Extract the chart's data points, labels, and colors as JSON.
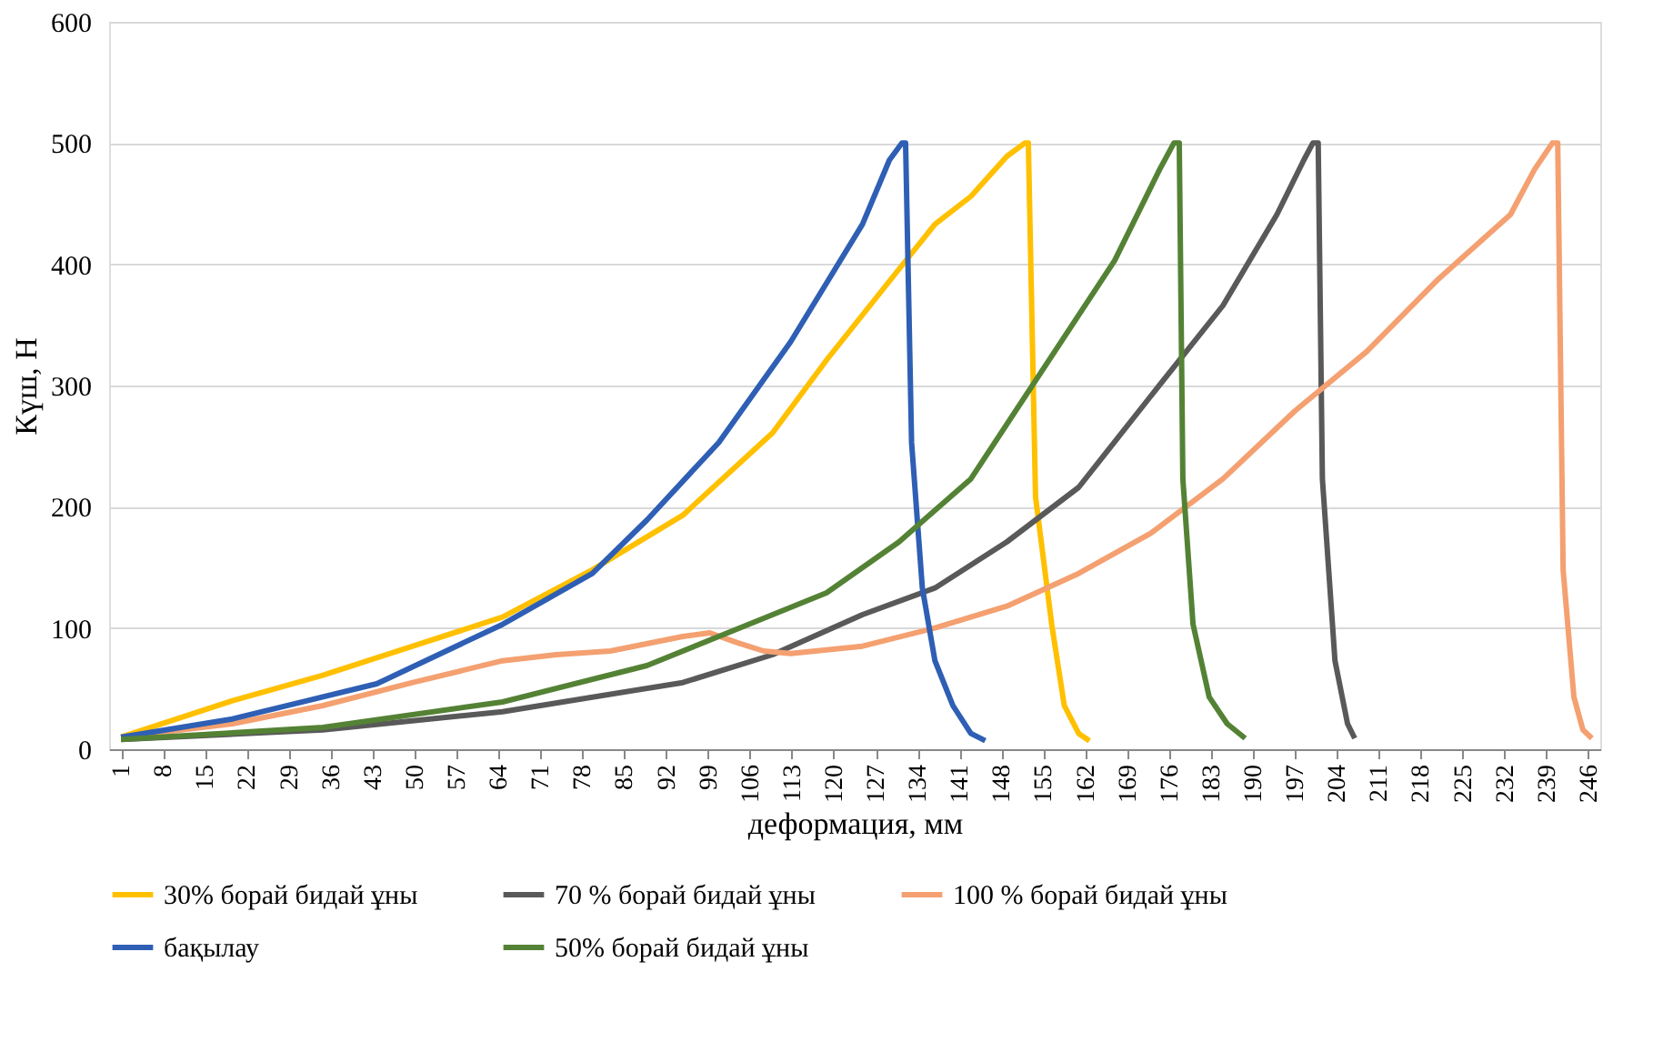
{
  "chart_data": {
    "type": "line",
    "xlabel": "деформация, мм",
    "ylabel": "Күш, Н",
    "xlim": [
      -1,
      248
    ],
    "ylim": [
      0,
      600
    ],
    "xticks": [
      1,
      8,
      15,
      22,
      29,
      36,
      43,
      50,
      57,
      64,
      71,
      78,
      85,
      92,
      99,
      106,
      113,
      120,
      127,
      134,
      141,
      148,
      155,
      162,
      169,
      176,
      183,
      190,
      197,
      204,
      211,
      218,
      225,
      232,
      239,
      246
    ],
    "yticks": [
      0,
      100,
      200,
      300,
      400,
      500,
      600
    ],
    "grid": "y",
    "legend": "bottom",
    "marker": "none",
    "line_style": "solid",
    "series": [
      {
        "name": "30% борай бидай ұны",
        "color": "#ffc000",
        "x": [
          1,
          19.6,
          34.7,
          49.7,
          64.7,
          79.7,
          94.8,
          109.8,
          118.8,
          130.9,
          136.9,
          142.9,
          148.9,
          151.9,
          152.5,
          153.7,
          156.4,
          158.5,
          160.9,
          162.7
        ],
        "values": [
          10,
          40,
          61,
          85,
          109,
          148,
          193,
          261,
          321,
          396,
          433,
          456,
          489,
          500,
          500,
          208,
          103,
          36,
          13,
          7
        ]
      },
      {
        "name": "70 % борай бидай ұны",
        "color": "#595959",
        "x": [
          1,
          34.7,
          64.7,
          94.8,
          109.8,
          124.8,
          136.9,
          148.9,
          160.9,
          172.9,
          185,
          194,
          198.5,
          200,
          200.9,
          201.6,
          203.7,
          205.8,
          207
        ],
        "values": [
          8,
          16,
          31,
          55,
          78,
          111,
          133,
          171,
          216,
          291,
          366,
          441,
          486,
          500,
          500,
          223,
          73,
          21,
          9
        ]
      },
      {
        "name": "100 % борай бидай ұны",
        "color": "#f4a070",
        "x": [
          1,
          19.6,
          34.7,
          49.7,
          64.7,
          73.7,
          82.7,
          94.8,
          99.3,
          103.8,
          108.3,
          112.8,
          124.8,
          136.9,
          148.9,
          160.9,
          172.9,
          185,
          197,
          209,
          221,
          233,
          237,
          240,
          240.9,
          241.8,
          243.6,
          245.1,
          246.6
        ],
        "values": [
          10,
          21,
          36,
          55,
          73,
          78,
          81,
          93,
          96,
          88,
          81,
          79,
          85,
          100,
          118,
          145,
          178,
          223,
          279,
          328,
          388,
          441,
          478,
          500,
          500,
          148,
          43,
          16,
          9
        ]
      },
      {
        "name": "бақылау",
        "color": "#2e5fb4",
        "x": [
          1,
          19.6,
          43.7,
          64.7,
          79.7,
          88.8,
          100.8,
          112.8,
          124.8,
          129.3,
          131.4,
          132,
          133,
          134.8,
          136.9,
          139.9,
          142.9,
          145.3
        ],
        "values": [
          10,
          25,
          54,
          103,
          145,
          189,
          253,
          336,
          433,
          486,
          500,
          500,
          253,
          133,
          73,
          36,
          13,
          7
        ]
      },
      {
        "name": "50% борай бидай ұны",
        "color": "#548235",
        "x": [
          1,
          34.7,
          64.7,
          88.8,
          103.8,
          118.8,
          130.9,
          142.9,
          154.9,
          166.9,
          174.4,
          176.8,
          177.7,
          178.3,
          180,
          182.7,
          185.7,
          188.7
        ],
        "values": [
          8,
          18,
          39,
          69,
          99,
          129,
          171,
          223,
          313,
          403,
          478,
          500,
          500,
          223,
          103,
          43,
          21,
          9
        ]
      }
    ]
  }
}
